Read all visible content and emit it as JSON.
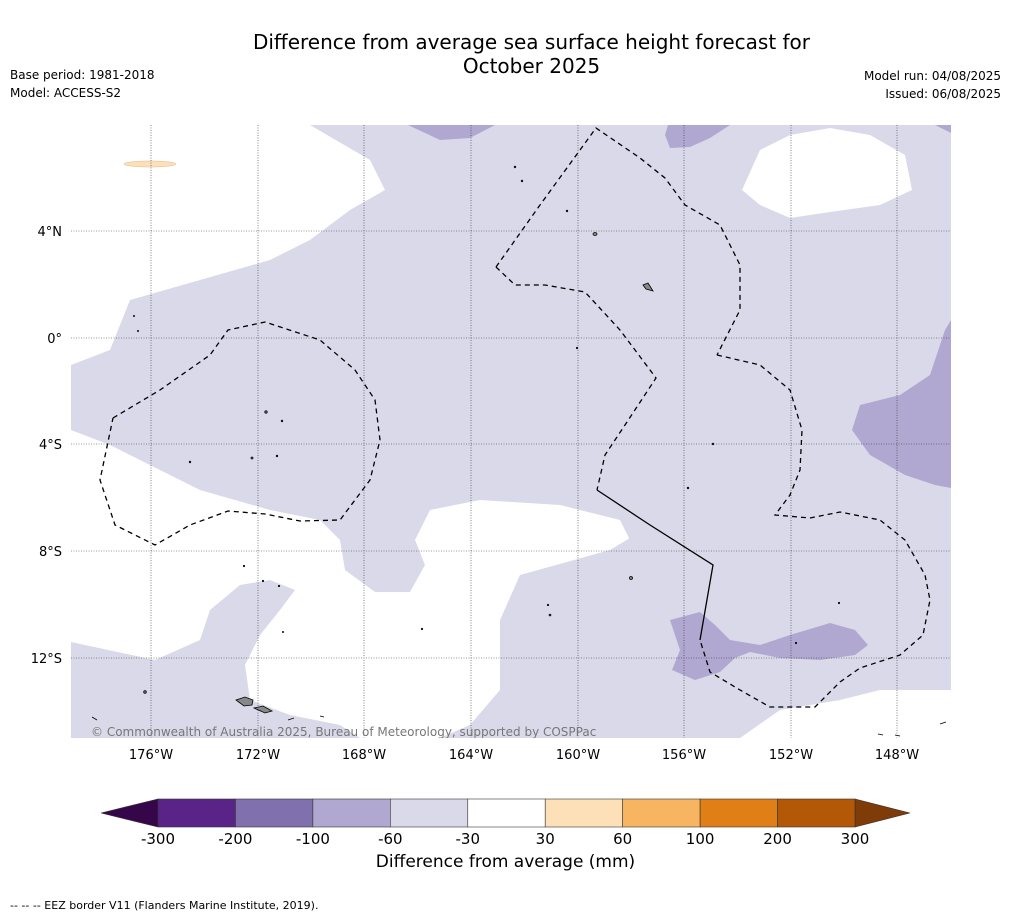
{
  "title_line1": "Difference from average sea surface height forecast for",
  "title_line2": "October 2025",
  "left_info": [
    "Base period: 1981-2018",
    "Model: ACCESS-S2"
  ],
  "right_info": [
    "Model run: 04/08/2025",
    "Issued: 06/08/2025"
  ],
  "lat_labels": [
    "4°N",
    "0°",
    "4°S",
    "8°S",
    "12°S"
  ],
  "lon_labels": [
    "176°W",
    "172°W",
    "168°W",
    "164°W",
    "160°W",
    "156°W",
    "152°W",
    "148°W"
  ],
  "copyright": "© Commonwealth of Australia 2025, Bureau of Meteorology, supported by COSPPac",
  "colorbar": {
    "ticks": [
      "-300",
      "-200",
      "-100",
      "-60",
      "-30",
      "30",
      "60",
      "100",
      "200",
      "300"
    ],
    "colors": [
      "#5a2387",
      "#8070ad",
      "#b0a8d0",
      "#d9d9ea",
      "#ffffff",
      "#fde0b7",
      "#f8b561",
      "#e07f16",
      "#b35807"
    ],
    "under_color": "#35074a",
    "over_color": "#7f3b08",
    "label": "Difference from average (mm)"
  },
  "footer": "--  --  -- EEZ border V11 (Flanders Marine Institute, 2019).",
  "map_colors": {
    "light_purple": "#d9d9ea",
    "medium_purple": "#b0a8d0",
    "light_orange": "#fde0b7",
    "land": "#999999"
  }
}
